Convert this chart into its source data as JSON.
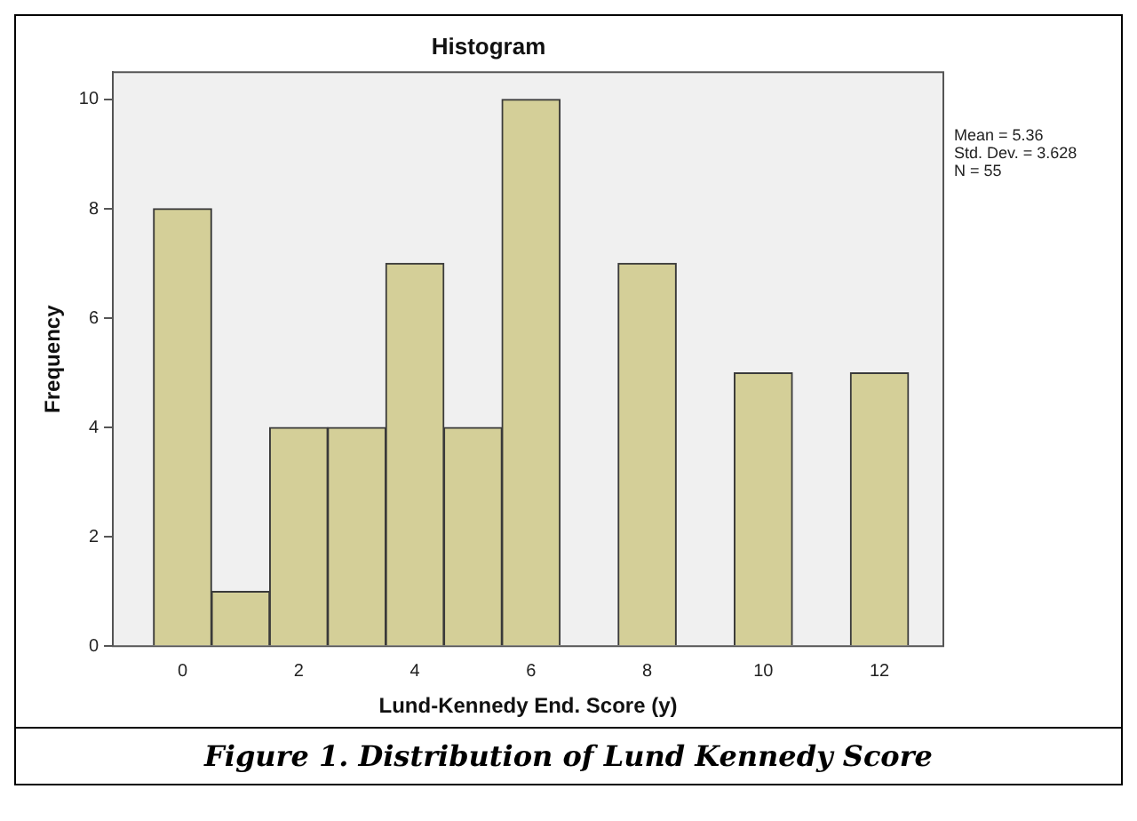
{
  "chart_data": {
    "type": "histogram",
    "title": "Histogram",
    "xlabel": "Lund-Kennedy End. Score (y)",
    "ylabel": "Frequency",
    "bins": [
      -0.5,
      0.5,
      1.5,
      2.5,
      3.5,
      4.5,
      5.5,
      6.5,
      7.5,
      8.5,
      9.5,
      10.5,
      11.5,
      12.5
    ],
    "values": [
      8,
      1,
      4,
      4,
      7,
      4,
      10,
      0,
      7,
      0,
      5,
      0,
      5
    ],
    "color": "#d4cf98",
    "xlim": [
      -1.2,
      13.1
    ],
    "xticks": [
      0,
      2,
      4,
      6,
      8,
      10,
      12
    ],
    "ylim": [
      0,
      10.5
    ],
    "yticks": [
      0,
      2,
      4,
      6,
      8,
      10
    ],
    "grid": false,
    "legend": false,
    "annotations": [
      "Mean = 5.36",
      "Std. Dev. = 3.628",
      "N = 55",
      "Figure 1. Distribution of Lund Kennedy Score"
    ]
  }
}
